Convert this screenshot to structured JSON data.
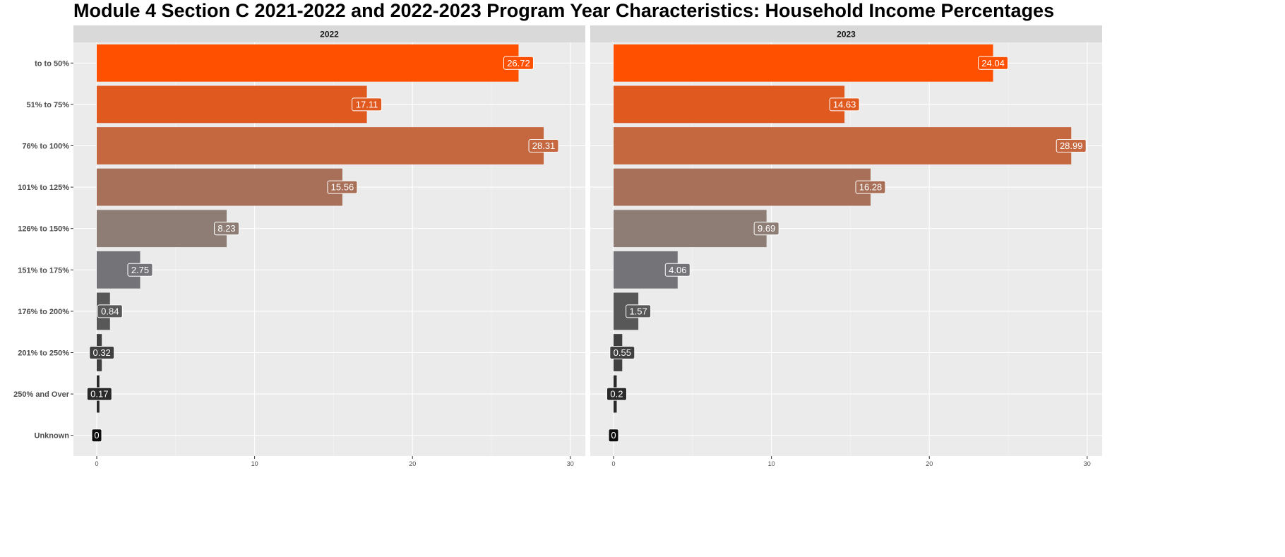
{
  "title": "Module 4 Section C 2021-2022 and 2022-2023 Program Year Characteristics: Household Income Percentages",
  "chart_data": {
    "type": "bar",
    "orientation": "horizontal",
    "facet_by": "year",
    "categories": [
      "to to 50%",
      "51% to 75%",
      "76% to 100%",
      "101% to 125%",
      "126% to 150%",
      "151% to 175%",
      "176% to 200%",
      "201% to 250%",
      "250% and Over",
      "Unknown"
    ],
    "category_colors": [
      "#ff5000",
      "#e05a20",
      "#c5673f",
      "#a87058",
      "#8d7d75",
      "#747478",
      "#585858",
      "#404040",
      "#2a2a2a",
      "#0d0d0d"
    ],
    "xlim": [
      0,
      30.5
    ],
    "x_ticks": [
      0,
      10,
      20,
      30
    ],
    "grid": true,
    "legend": "none",
    "data_labels": true,
    "panels": [
      {
        "label": "2022",
        "values": [
          26.72,
          17.11,
          28.31,
          15.56,
          8.23,
          2.75,
          0.84,
          0.32,
          0.17,
          0
        ]
      },
      {
        "label": "2023",
        "values": [
          24.04,
          14.63,
          28.99,
          16.28,
          9.69,
          4.06,
          1.57,
          0.55,
          0.2,
          0
        ]
      }
    ]
  }
}
